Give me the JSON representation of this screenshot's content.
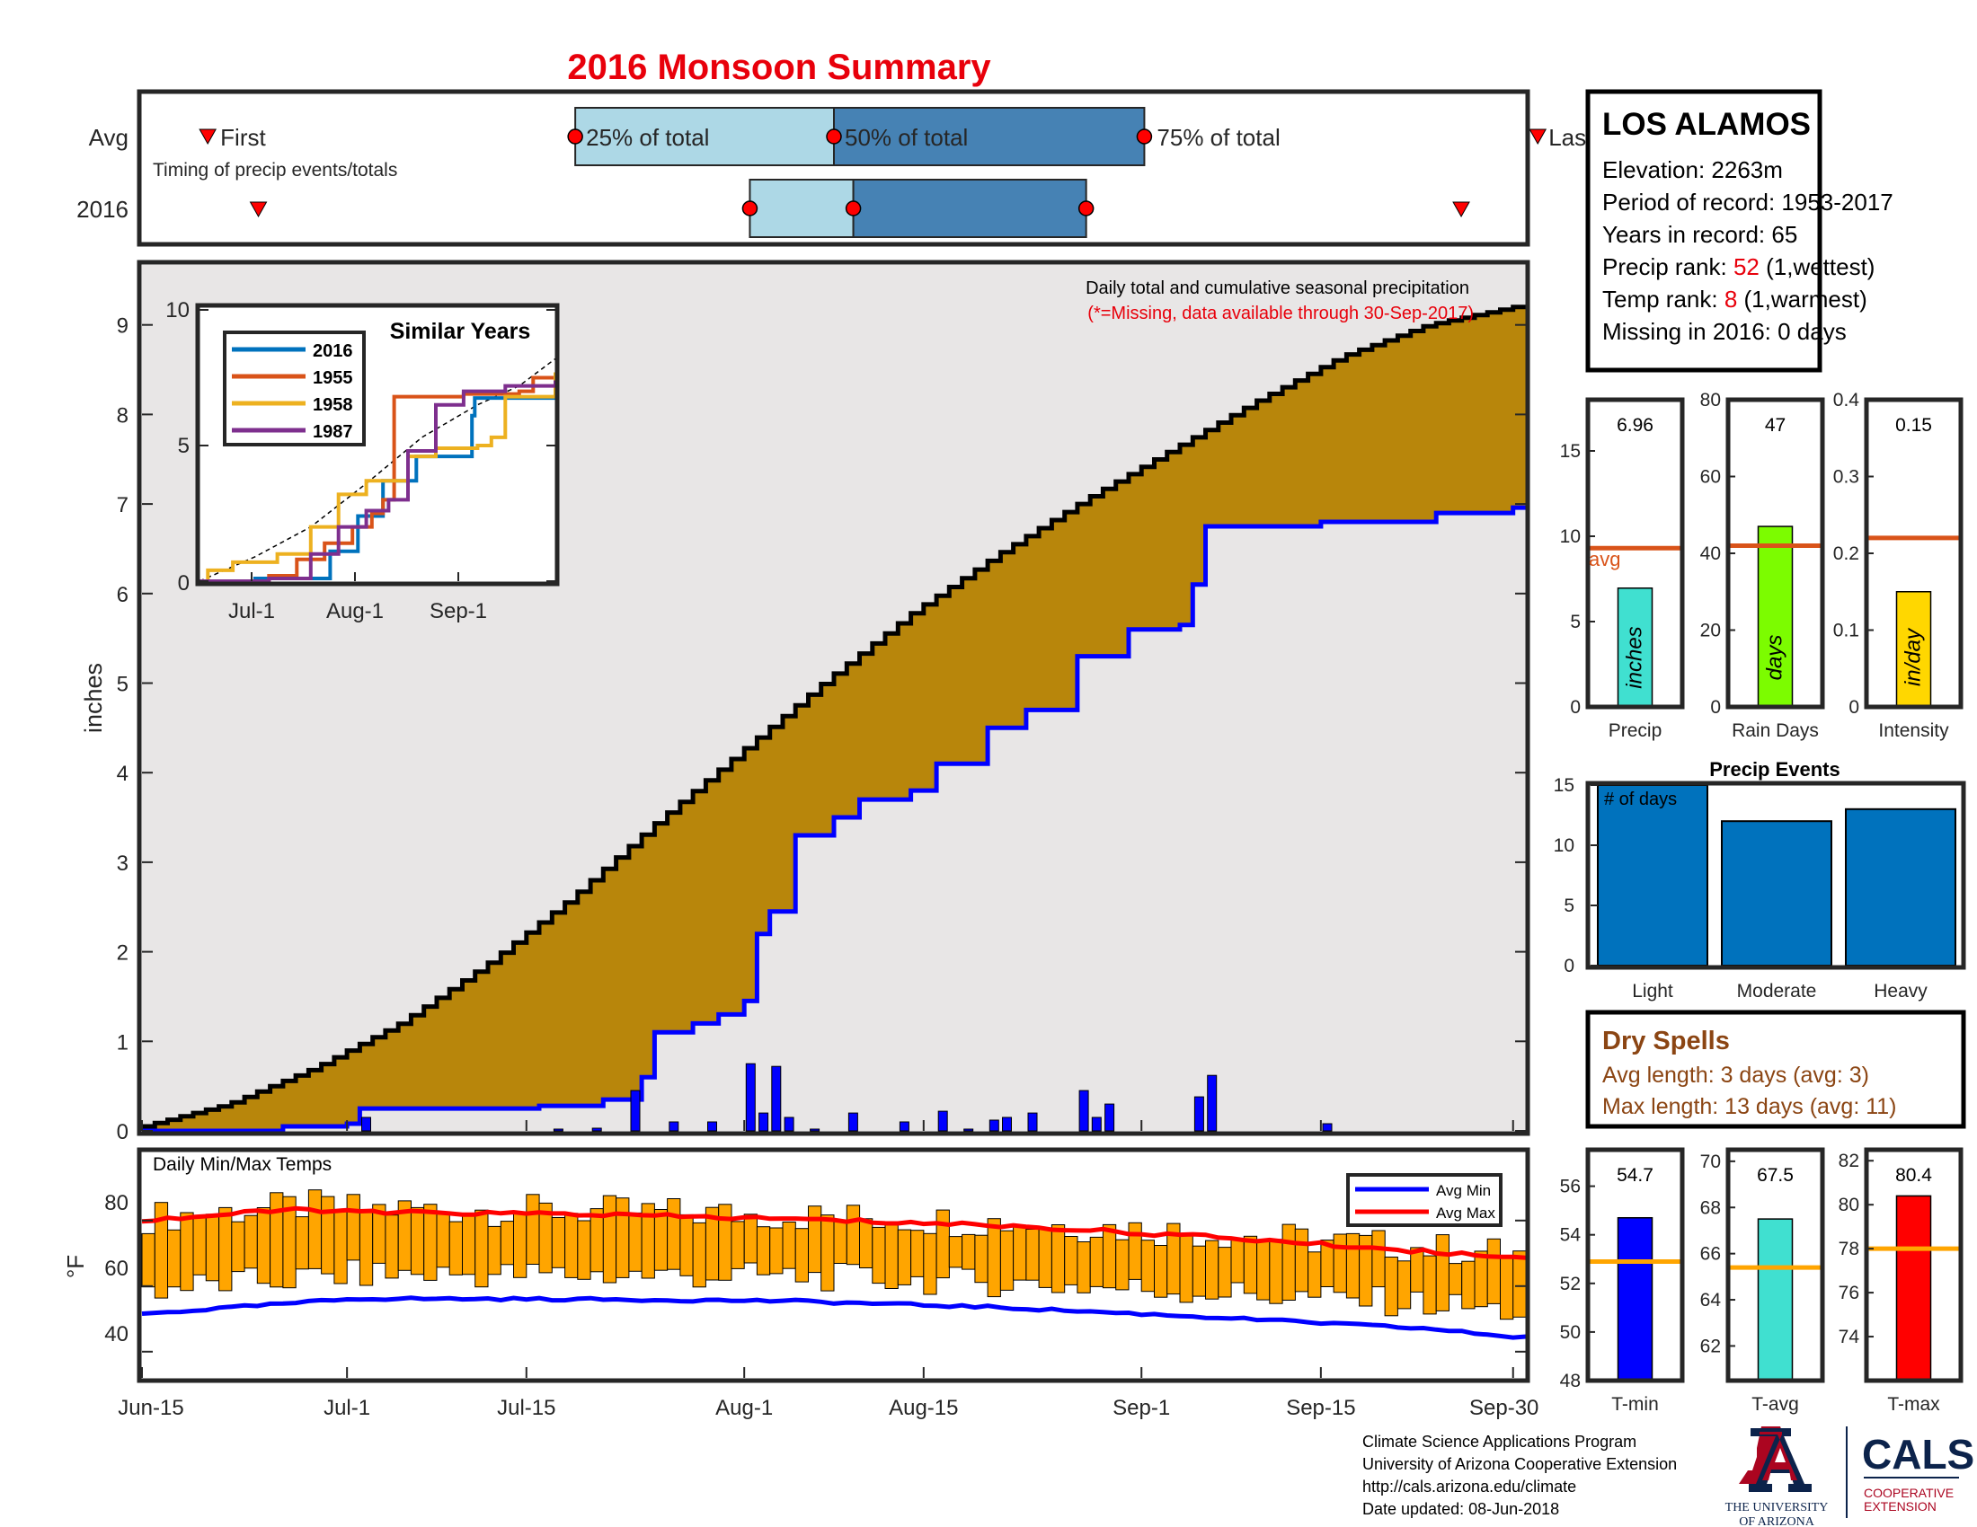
{
  "title": "2016 Monsoon Summary",
  "timing": {
    "row_avg": "Avg",
    "row_year": "2016",
    "first": "First",
    "last": "Last",
    "caption": "Timing of precip events/totals",
    "q25": "25% of total",
    "q50": "50% of total",
    "q75": "75% of total",
    "avg_days": {
      "first": 5.5,
      "q25": 33.5,
      "q50": 53.5,
      "q75": 77.5,
      "last": 107.5
    },
    "year_days": {
      "first": 9,
      "q25": 47,
      "q50": 55,
      "q75": 73,
      "last": 102
    }
  },
  "station": {
    "name": "LOS ALAMOS",
    "elevation": "Elevation: 2263m",
    "period": "Period of record: 1953-2017",
    "years": "Years in record: 65",
    "precip_rank_label": "Precip rank: ",
    "precip_rank_value": "52",
    "precip_rank_note": " (1,wettest)",
    "temp_rank_label": "Temp rank: ",
    "temp_rank_value": "8",
    "temp_rank_note": " (1,warmest)",
    "missing": "Missing in 2016: 0 days"
  },
  "main_chart": {
    "ylabel": "inches",
    "note1": "Daily total and cumulative seasonal precipitation",
    "note2": "(*=Missing, data available through 30-Sep-2017)",
    "y_ticks": [
      "0",
      "1",
      "2",
      "3",
      "4",
      "5",
      "6",
      "7",
      "8",
      "9"
    ],
    "x_ticks": [
      "Jun-15",
      "Jul-1",
      "Jul-15",
      "Aug-1",
      "Aug-15",
      "Sep-1",
      "Sep-15",
      "Sep-30"
    ],
    "colors": {
      "avg_fill": "#b8860b",
      "obs_fill": "#e8e6e6",
      "obs_line": "#0000ff",
      "daily_bar": "#0000ff"
    }
  },
  "inset": {
    "title": "Similar Years",
    "x_ticks": [
      "Jul-1",
      "Aug-1",
      "Sep-1"
    ],
    "y_ticks": [
      "0",
      "5",
      "10"
    ],
    "legend": [
      {
        "name": "2016",
        "color": "#0072bd"
      },
      {
        "name": "1955",
        "color": "#d95319"
      },
      {
        "name": "1958",
        "color": "#edb120"
      },
      {
        "name": "1987",
        "color": "#7e2f8e"
      }
    ]
  },
  "temps": {
    "title": "Daily Min/Max Temps",
    "ylabel": "°F",
    "y_ticks": [
      "40",
      "60",
      "80"
    ],
    "legend_min": "Avg Min",
    "legend_max": "Avg Max",
    "colors": {
      "bar": "#ffa500",
      "avg_min": "#0000ff",
      "avg_max": "#ff0000"
    }
  },
  "summary_bars": {
    "precip": {
      "label": "Precip",
      "value_text": "6.96",
      "unit": "inches",
      "avg_label": "avg",
      "ticks": [
        "0",
        "5",
        "10",
        "15"
      ],
      "color": "#40e0d0"
    },
    "rain_days": {
      "label": "Rain Days",
      "value_text": "47",
      "unit": "days",
      "ticks": [
        "0",
        "20",
        "40",
        "60",
        "80"
      ],
      "color": "#7cfc00"
    },
    "intensity": {
      "label": "Intensity",
      "value_text": "0.15",
      "unit": "in/day",
      "ticks": [
        "0",
        "0.1",
        "0.2",
        "0.3",
        "0.4"
      ],
      "color": "#ffd700"
    }
  },
  "precip_events": {
    "title": "Precip Events",
    "note": "# of days",
    "categories": [
      "Light",
      "Moderate",
      "Heavy"
    ],
    "ticks": [
      "0",
      "5",
      "10",
      "15"
    ]
  },
  "dry_spells": {
    "title": "Dry Spells",
    "avg_length": "Avg length: 3 days (avg: 3)",
    "max_length": "Max length: 13 days (avg: 11)"
  },
  "temp_bars": {
    "tmin": {
      "label": "T-min",
      "value_text": "54.7",
      "ticks": [
        "48",
        "50",
        "52",
        "54",
        "56"
      ],
      "color": "#0000ff"
    },
    "tavg": {
      "label": "T-avg",
      "value_text": "67.5",
      "ticks": [
        "62",
        "64",
        "66",
        "68",
        "70"
      ],
      "color": "#40e0d0"
    },
    "tmax": {
      "label": "T-max",
      "value_text": "80.4",
      "ticks": [
        "74",
        "76",
        "78",
        "80",
        "82"
      ],
      "color": "#ff0000"
    }
  },
  "footer": {
    "line1": "Climate Science Applications Program",
    "line2": "University of Arizona Cooperative Extension",
    "line3": "http://cals.arizona.edu/climate",
    "line4": " Date updated: 08-Jun-2018",
    "ua_line1": "THE UNIVERSITY",
    "ua_line2": "OF ARIZONA",
    "cals": "CALS",
    "cals_sub1": "COOPERATIVE",
    "cals_sub2": "EXTENSION"
  },
  "chart_data": [
    {
      "type": "area",
      "title": "Daily total and cumulative seasonal precipitation",
      "ylabel": "inches",
      "x_range": [
        "Jun-15",
        "Sep-30"
      ],
      "ylim": [
        0,
        9.4
      ],
      "series": [
        {
          "name": "Average cumulative",
          "points": [
            [
              0,
              0.05
            ],
            [
              8,
              0.3
            ],
            [
              16,
              0.7
            ],
            [
              24,
              1.2
            ],
            [
              32,
              1.85
            ],
            [
              40,
              2.6
            ],
            [
              48,
              3.45
            ],
            [
              56,
              4.25
            ],
            [
              64,
              5.05
            ],
            [
              72,
              5.8
            ],
            [
              80,
              6.45
            ],
            [
              88,
              7.05
            ],
            [
              96,
              7.6
            ],
            [
              104,
              8.15
            ],
            [
              112,
              8.65
            ],
            [
              120,
              9.0
            ],
            [
              128,
              9.2
            ]
          ]
        },
        {
          "name": "2016 cumulative",
          "points": [
            [
              0,
              0
            ],
            [
              13,
              0.05
            ],
            [
              19,
              0.08
            ],
            [
              20,
              0.25
            ],
            [
              37,
              0.28
            ],
            [
              42,
              0.35
            ],
            [
              46,
              0.6
            ],
            [
              47,
              1.1
            ],
            [
              51,
              1.2
            ],
            [
              53,
              1.3
            ],
            [
              56,
              1.45
            ],
            [
              57,
              2.2
            ],
            [
              58,
              2.45
            ],
            [
              60,
              3.3
            ],
            [
              64,
              3.5
            ],
            [
              66,
              3.7
            ],
            [
              71,
              3.8
            ],
            [
              74,
              4.1
            ],
            [
              78,
              4.5
            ],
            [
              82,
              4.7
            ],
            [
              87,
              5.3
            ],
            [
              92,
              5.6
            ],
            [
              96,
              5.65
            ],
            [
              98,
              6.1
            ],
            [
              99,
              6.75
            ],
            [
              110,
              6.8
            ],
            [
              120,
              6.9
            ],
            [
              128,
              6.96
            ]
          ]
        },
        {
          "name": "Daily precip",
          "points": [
            [
              20,
              0.15
            ],
            [
              38,
              0.02
            ],
            [
              42,
              0.03
            ],
            [
              45,
              0.15
            ],
            [
              46,
              0.45
            ],
            [
              49,
              0.1
            ],
            [
              53,
              0.1
            ],
            [
              56,
              0.75
            ],
            [
              57,
              0.2
            ],
            [
              59,
              0.72
            ],
            [
              60,
              0.15
            ],
            [
              62,
              0.02
            ],
            [
              66,
              0.2
            ],
            [
              71,
              0.1
            ],
            [
              74,
              0.22
            ],
            [
              76,
              0.02
            ],
            [
              79,
              0.12
            ],
            [
              80,
              0.15
            ],
            [
              82,
              0.1
            ],
            [
              83,
              0.2
            ],
            [
              87,
              0.45
            ],
            [
              88,
              0.15
            ],
            [
              90,
              0.3
            ],
            [
              98,
              0.38
            ],
            [
              99,
              0.62
            ],
            [
              110,
              0.08
            ]
          ]
        }
      ]
    },
    {
      "type": "line",
      "title": "Similar Years",
      "x_ticks": [
        "Jul-1",
        "Aug-1",
        "Sep-1"
      ],
      "ylim": [
        0,
        10
      ],
      "series": [
        {
          "name": "2016",
          "points": [
            [
              0,
              0
            ],
            [
              20,
              0.1
            ],
            [
              47,
              1.1
            ],
            [
              57,
              2.4
            ],
            [
              66,
              3.7
            ],
            [
              78,
              4.6
            ],
            [
              98,
              6.1
            ],
            [
              99,
              6.75
            ],
            [
              128,
              6.96
            ]
          ]
        },
        {
          "name": "1955",
          "points": [
            [
              0,
              0
            ],
            [
              25,
              0.2
            ],
            [
              35,
              0.8
            ],
            [
              45,
              1.4
            ],
            [
              55,
              2.0
            ],
            [
              62,
              2.5
            ],
            [
              66,
              3.0
            ],
            [
              70,
              6.8
            ],
            [
              95,
              6.9
            ],
            [
              115,
              7.0
            ],
            [
              120,
              7.5
            ],
            [
              128,
              7.6
            ]
          ]
        },
        {
          "name": "1958",
          "points": [
            [
              0,
              0
            ],
            [
              3,
              0.4
            ],
            [
              12,
              0.7
            ],
            [
              28,
              1.0
            ],
            [
              40,
              2.0
            ],
            [
              50,
              3.2
            ],
            [
              60,
              3.7
            ],
            [
              75,
              4.6
            ],
            [
              85,
              4.9
            ],
            [
              100,
              5.0
            ],
            [
              105,
              5.3
            ],
            [
              110,
              6.8
            ],
            [
              128,
              7.7
            ]
          ]
        },
        {
          "name": "1987",
          "points": [
            [
              0,
              0
            ],
            [
              25,
              0.1
            ],
            [
              40,
              1.0
            ],
            [
              50,
              2.0
            ],
            [
              60,
              2.6
            ],
            [
              68,
              3.0
            ],
            [
              75,
              4.8
            ],
            [
              85,
              6.5
            ],
            [
              95,
              7.0
            ],
            [
              110,
              7.2
            ],
            [
              128,
              7.4
            ]
          ]
        },
        {
          "name": "Average",
          "points": [
            [
              0,
              0
            ],
            [
              20,
              0.9
            ],
            [
              40,
              2.0
            ],
            [
              60,
              3.6
            ],
            [
              80,
              5.3
            ],
            [
              100,
              6.5
            ],
            [
              115,
              7.2
            ],
            [
              128,
              8.2
            ]
          ]
        }
      ]
    },
    {
      "type": "bar",
      "title": "Daily Min/Max Temps",
      "ylabel": "°F",
      "ylim": [
        32,
        95
      ],
      "series": [
        {
          "name": "Avg Min",
          "points": [
            [
              0,
              51.5
            ],
            [
              15,
              55
            ],
            [
              20,
              56.2
            ],
            [
              40,
              56
            ],
            [
              60,
              55.5
            ],
            [
              80,
              53.5
            ],
            [
              100,
              50.5
            ],
            [
              120,
              47
            ],
            [
              128,
              44.5
            ]
          ]
        },
        {
          "name": "Avg Max",
          "points": [
            [
              0,
              80
            ],
            [
              15,
              83.5
            ],
            [
              20,
              82.5
            ],
            [
              40,
              82
            ],
            [
              60,
              80.5
            ],
            [
              80,
              78.5
            ],
            [
              100,
              75
            ],
            [
              120,
              70.5
            ],
            [
              128,
              69
            ]
          ]
        }
      ]
    },
    {
      "type": "bar",
      "title": "Precip",
      "categories": [
        "inches"
      ],
      "values": [
        6.96
      ],
      "average": 9.3,
      "ylim": [
        0,
        18
      ]
    },
    {
      "type": "bar",
      "title": "Rain Days",
      "categories": [
        "days"
      ],
      "values": [
        47
      ],
      "average": 42,
      "ylim": [
        0,
        80
      ]
    },
    {
      "type": "bar",
      "title": "Intensity",
      "categories": [
        "in/day"
      ],
      "values": [
        0.15
      ],
      "average": 0.22,
      "ylim": [
        0,
        0.4
      ]
    },
    {
      "type": "bar",
      "title": "Precip Events",
      "categories": [
        "Light",
        "Moderate",
        "Heavy"
      ],
      "values": [
        15,
        12,
        13
      ],
      "ylim": [
        0,
        15
      ]
    },
    {
      "type": "bar",
      "title": "T-min",
      "categories": [
        "T-min"
      ],
      "values": [
        54.7
      ],
      "average": 52.9,
      "ylim": [
        48,
        57.5
      ]
    },
    {
      "type": "bar",
      "title": "T-avg",
      "categories": [
        "T-avg"
      ],
      "values": [
        67.5
      ],
      "average": 65.4,
      "ylim": [
        60.5,
        70.5
      ]
    },
    {
      "type": "bar",
      "title": "T-max",
      "categories": [
        "T-max"
      ],
      "values": [
        80.4
      ],
      "average": 78,
      "ylim": [
        72,
        82.5
      ]
    }
  ]
}
